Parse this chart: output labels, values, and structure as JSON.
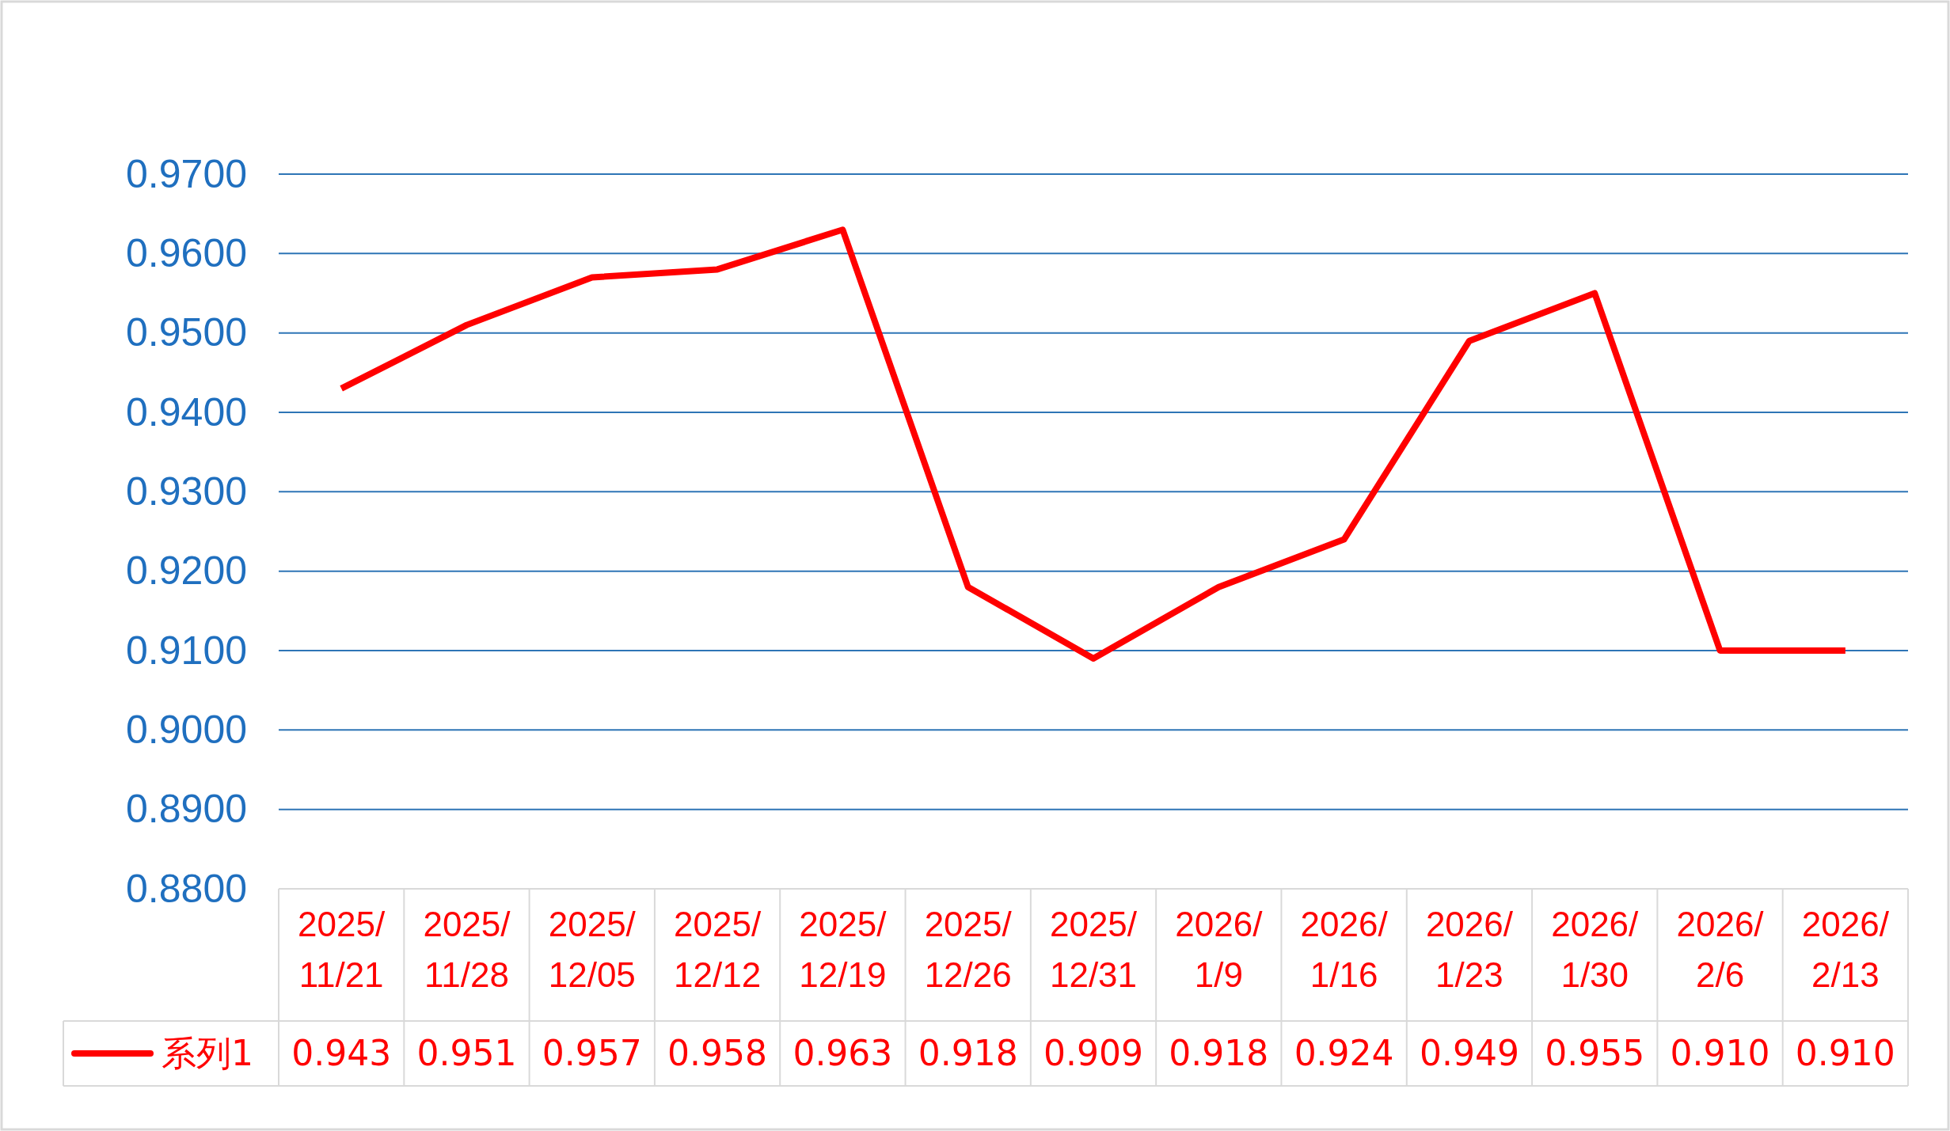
{
  "chart_data": {
    "type": "line",
    "categories": [
      "2025/11/21",
      "2025/11/28",
      "2025/12/05",
      "2025/12/12",
      "2025/12/19",
      "2025/12/26",
      "2025/12/31",
      "2026/1/9",
      "2026/1/16",
      "2026/1/23",
      "2026/1/30",
      "2026/2/6",
      "2026/2/13"
    ],
    "series": [
      {
        "name": "系列1",
        "color": "#ff0000",
        "values": [
          0.943,
          0.951,
          0.957,
          0.958,
          0.963,
          0.918,
          0.909,
          0.918,
          0.924,
          0.949,
          0.955,
          0.91,
          0.91
        ],
        "value_labels": [
          "0.943",
          "0.951",
          "0.957",
          "0.958",
          "0.963",
          "0.918",
          "0.909",
          "0.918",
          "0.924",
          "0.949",
          "0.955",
          "0.910",
          "0.910"
        ]
      }
    ],
    "ylim": [
      0.88,
      0.97
    ],
    "yticks": [
      {
        "value": 0.88,
        "label": "0.8800"
      },
      {
        "value": 0.89,
        "label": "0.8900"
      },
      {
        "value": 0.9,
        "label": "0.9000"
      },
      {
        "value": 0.91,
        "label": "0.9100"
      },
      {
        "value": 0.92,
        "label": "0.9200"
      },
      {
        "value": 0.93,
        "label": "0.9300"
      },
      {
        "value": 0.94,
        "label": "0.9400"
      },
      {
        "value": 0.95,
        "label": "0.9500"
      },
      {
        "value": 0.96,
        "label": "0.9600"
      },
      {
        "value": 0.97,
        "label": "0.9700"
      }
    ],
    "grid": "y",
    "legend": "bottom",
    "marker": "none",
    "line_style": "solid"
  }
}
